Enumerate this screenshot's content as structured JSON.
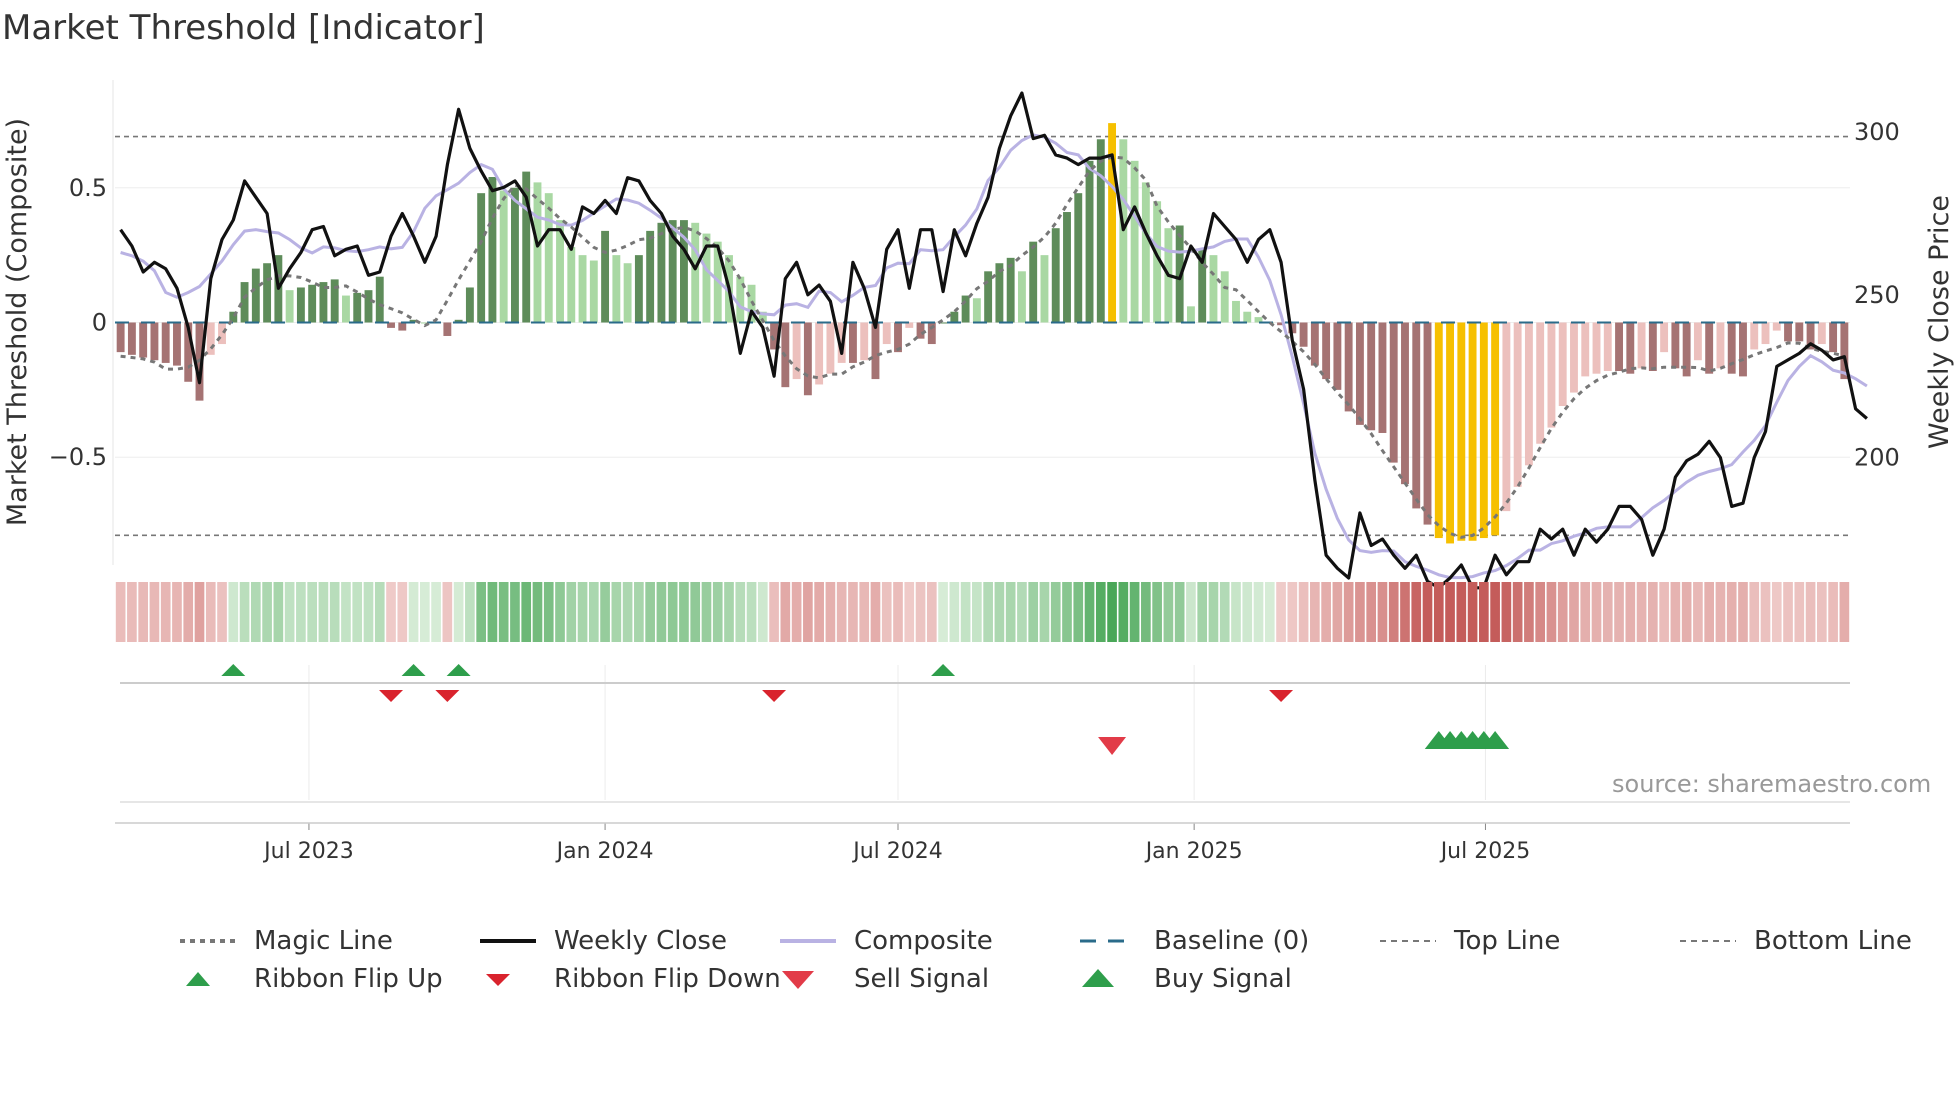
{
  "title": "Market Threshold [Indicator]",
  "source": "source: sharemaestro.com",
  "chart_data": {
    "type": "bar",
    "title": "Market Threshold [Indicator]",
    "ylabel": "Market Threshold (Composite)",
    "y2label": "Weekly Close Price",
    "ylim": [
      -0.9,
      0.9
    ],
    "y2lim": [
      167,
      316
    ],
    "yticks": [
      "0.5",
      "0",
      "−0.5"
    ],
    "y2ticks": [
      "300",
      "250",
      "200"
    ],
    "xticks": [
      "Jul 2023",
      "Jan 2024",
      "Jul 2024",
      "Jan 2025",
      "Jul 2025"
    ],
    "start": "2023-03-06",
    "top_line": 0.69,
    "bottom_line": -0.79,
    "composite": [
      -0.11,
      -0.12,
      -0.13,
      -0.14,
      -0.15,
      -0.16,
      -0.22,
      -0.29,
      -0.12,
      -0.08,
      0.04,
      0.15,
      0.2,
      0.22,
      0.25,
      0.12,
      0.13,
      0.14,
      0.15,
      0.16,
      0.1,
      0.11,
      0.12,
      0.17,
      -0.02,
      -0.03,
      0.01,
      0.0,
      0.0,
      -0.05,
      0.01,
      0.13,
      0.48,
      0.54,
      0.49,
      0.5,
      0.56,
      0.52,
      0.48,
      0.38,
      0.28,
      0.25,
      0.23,
      0.34,
      0.25,
      0.22,
      0.25,
      0.34,
      0.37,
      0.38,
      0.38,
      0.37,
      0.33,
      0.3,
      0.25,
      0.17,
      0.14,
      0.04,
      -0.1,
      -0.24,
      -0.21,
      -0.27,
      -0.23,
      -0.19,
      -0.15,
      -0.15,
      -0.14,
      -0.21,
      -0.08,
      -0.11,
      -0.02,
      -0.06,
      -0.08,
      0.0,
      0.04,
      0.1,
      0.09,
      0.19,
      0.22,
      0.24,
      0.19,
      0.3,
      0.25,
      0.35,
      0.41,
      0.48,
      0.6,
      0.68,
      0.74,
      0.68,
      0.6,
      0.52,
      0.45,
      0.35,
      0.36,
      0.06,
      0.27,
      0.25,
      0.19,
      0.08,
      0.04,
      0.02,
      0.0,
      -0.01,
      -0.04,
      -0.09,
      -0.16,
      -0.21,
      -0.25,
      -0.33,
      -0.38,
      -0.4,
      -0.41,
      -0.52,
      -0.6,
      -0.69,
      -0.75,
      -0.8,
      -0.82,
      -0.81,
      -0.81,
      -0.8,
      -0.79,
      -0.7,
      -0.61,
      -0.53,
      -0.45,
      -0.39,
      -0.31,
      -0.26,
      -0.2,
      -0.19,
      -0.18,
      -0.18,
      -0.19,
      -0.17,
      -0.18,
      -0.11,
      -0.17,
      -0.2,
      -0.14,
      -0.19,
      -0.17,
      -0.19,
      -0.2,
      -0.1,
      -0.08,
      -0.03,
      -0.07,
      -0.07,
      -0.1,
      -0.08,
      -0.11,
      -0.21
    ],
    "weekly_close": [
      270,
      265,
      257,
      260,
      258,
      252,
      240,
      223,
      255,
      267,
      273,
      285,
      280,
      275,
      252,
      258,
      263,
      270,
      271,
      262,
      264,
      265,
      256,
      257,
      268,
      275,
      268,
      260,
      268,
      290,
      307,
      295,
      288,
      282,
      283,
      285,
      280,
      265,
      270,
      270,
      264,
      277,
      275,
      279,
      275,
      286,
      285,
      279,
      275,
      268,
      264,
      258,
      265,
      265,
      252,
      232,
      245,
      240,
      225,
      255,
      260,
      250,
      253,
      248,
      232,
      260,
      252,
      240,
      264,
      270,
      252,
      270,
      270,
      251,
      270,
      262,
      272,
      280,
      295,
      305,
      312,
      298,
      299,
      293,
      292,
      290,
      292,
      292,
      293,
      270,
      277,
      269,
      262,
      256,
      255,
      265,
      260,
      275,
      271,
      267,
      260,
      267,
      270,
      260,
      236,
      221,
      193,
      170,
      166,
      163,
      183,
      173,
      175,
      170,
      166,
      170,
      162,
      160,
      163,
      167,
      160,
      160,
      170,
      164,
      168,
      168,
      178,
      175,
      178,
      170,
      178,
      174,
      178,
      185,
      185,
      181,
      170,
      178,
      194,
      199,
      201,
      205,
      200,
      185,
      186,
      200,
      208,
      228,
      230,
      232,
      235,
      233,
      230,
      231,
      215,
      212
    ]
  },
  "legend": {
    "magic": "Magic Line",
    "weekly": "Weekly Close",
    "composite": "Composite",
    "baseline": "Baseline (0)",
    "top": "Top Line",
    "bottom": "Bottom Line",
    "flip_up": "Ribbon Flip Up",
    "flip_down": "Ribbon Flip Down",
    "sell": "Sell Signal",
    "buy": "Buy Signal"
  },
  "colors": {
    "weekly": "#111111",
    "composite": "#b9b2e3",
    "magic": "#777777",
    "baseline": "#2a6b8a",
    "flip_up": "#2e9e4b",
    "flip_down": "#d9232d",
    "sell": "#e23b48",
    "buy": "#2e9e4b",
    "extreme": "#f6c000"
  }
}
